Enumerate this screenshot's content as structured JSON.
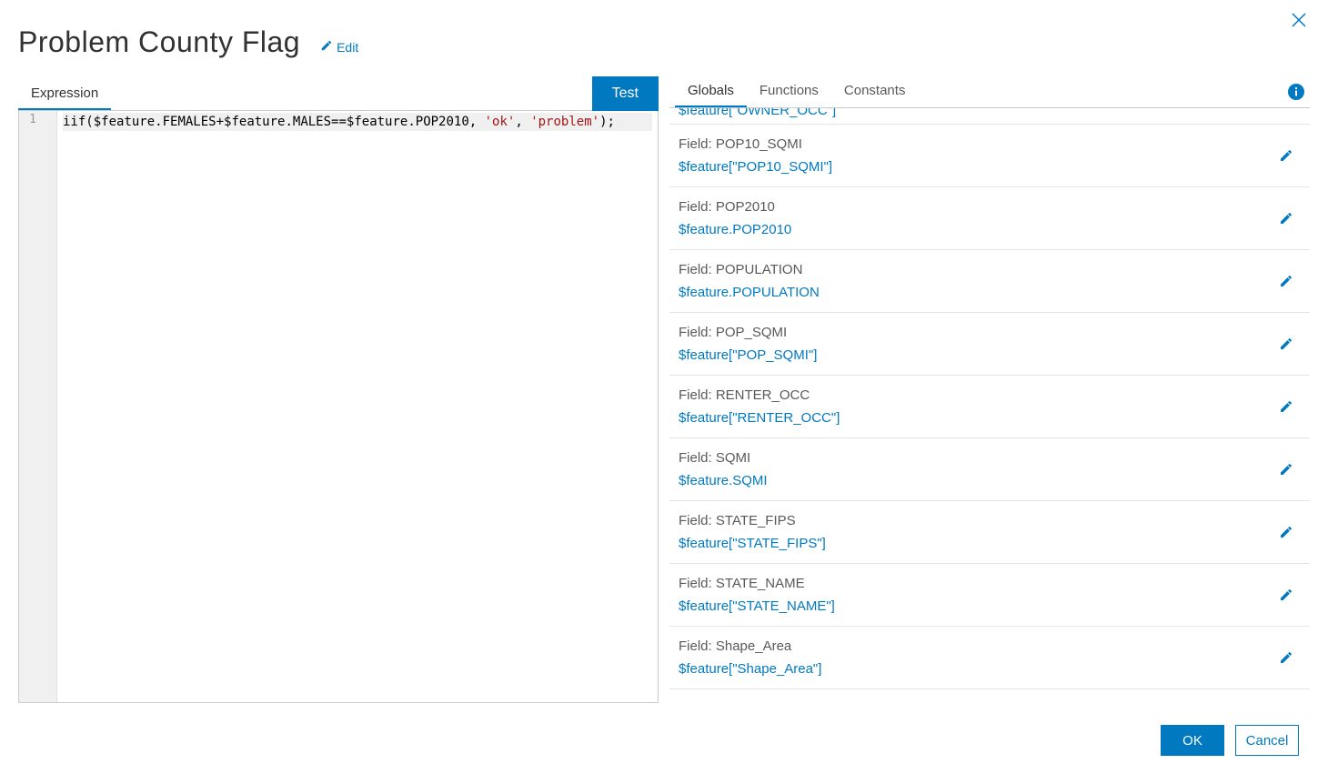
{
  "colors": {
    "accent": "#0079c1",
    "text": "#323232",
    "muted": "#595959",
    "border": "#cccccc",
    "row_border": "#e4e4e4",
    "gutter_bg": "#f0f0f0",
    "string_token": "#a31515"
  },
  "header": {
    "title": "Problem County Flag",
    "edit_label": "Edit"
  },
  "left": {
    "tab_label": "Expression",
    "test_button_label": "Test",
    "gutter_line": "1",
    "code_tokens": {
      "fn": "iif",
      "open": "(",
      "var1": "$feature.FEMALES",
      "plus": "+",
      "var2": "$feature.MALES",
      "eq": "==",
      "var3": "$feature.POP2010",
      "comma1": ", ",
      "str1": "'ok'",
      "comma2": ", ",
      "str2": "'problem'",
      "close": ");"
    }
  },
  "right": {
    "tabs": {
      "globals": "Globals",
      "functions": "Functions",
      "constants": "Constants"
    },
    "partial_top_fragment": "$feature[\"OWNER_OCC\"]",
    "fields": [
      {
        "label": "Field: POP10_SQMI",
        "ref": "$feature[\"POP10_SQMI\"]"
      },
      {
        "label": "Field: POP2010",
        "ref": "$feature.POP2010"
      },
      {
        "label": "Field: POPULATION",
        "ref": "$feature.POPULATION"
      },
      {
        "label": "Field: POP_SQMI",
        "ref": "$feature[\"POP_SQMI\"]"
      },
      {
        "label": "Field: RENTER_OCC",
        "ref": "$feature[\"RENTER_OCC\"]"
      },
      {
        "label": "Field: SQMI",
        "ref": "$feature.SQMI"
      },
      {
        "label": "Field: STATE_FIPS",
        "ref": "$feature[\"STATE_FIPS\"]"
      },
      {
        "label": "Field: STATE_NAME",
        "ref": "$feature[\"STATE_NAME\"]"
      },
      {
        "label": "Field: Shape_Area",
        "ref": "$feature[\"Shape_Area\"]"
      }
    ]
  },
  "footer": {
    "ok": "OK",
    "cancel": "Cancel"
  }
}
